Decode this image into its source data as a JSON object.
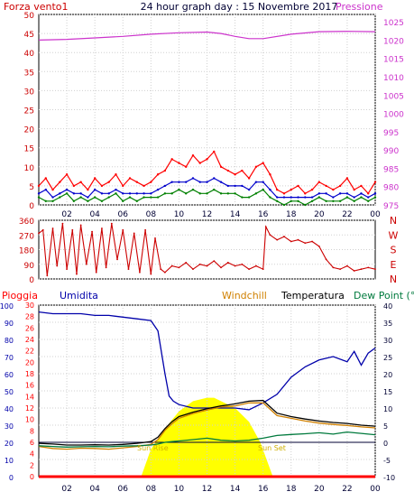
{
  "header": {
    "title": "24 hour graph day : 15 Novembre 2017",
    "wind_label": "Forza vento1",
    "pressure_label": "Pressione"
  },
  "bottom_legend": {
    "rain": "Pioggia",
    "humidity": "Umidita",
    "windchill": "Windchill",
    "temperature": "Temperatura",
    "dewpoint": "Dew Point (°C"
  },
  "annotations": {
    "sunrise": "Sun Rise",
    "sunset": "Sun Set"
  },
  "colors": {
    "wind_gust": "#ff0000",
    "wind_avg": "#0000cc",
    "wind_low": "#008000",
    "pressure": "#cc33cc",
    "direction": "#cc0000",
    "rain_axis": "#ff0000",
    "humidity": "#0000aa",
    "temperature": "#000000",
    "windchill": "#d08000",
    "dewpoint": "#007a3d",
    "sun": "#ffff00"
  },
  "chart_data": [
    {
      "type": "line",
      "name": "wind-pressure-panel",
      "x_ticks": [
        "02",
        "04",
        "06",
        "08",
        "10",
        "12",
        "14",
        "16",
        "18",
        "20",
        "22",
        "00"
      ],
      "y_left": {
        "label": "Forza vento1",
        "ticks": [
          0,
          5,
          10,
          15,
          20,
          25,
          30,
          35,
          40,
          45,
          50
        ],
        "ylim": [
          0,
          50
        ]
      },
      "y_right": {
        "label": "Pressione",
        "ticks": [
          975,
          980,
          985,
          990,
          995,
          1000,
          1005,
          1010,
          1015,
          1020,
          1025
        ],
        "ylim": [
          975,
          1027
        ]
      },
      "xlim": [
        0,
        24
      ],
      "series": [
        {
          "axis": "left",
          "color": "wind_gust",
          "x": [
            0,
            0.5,
            1,
            1.5,
            2,
            2.5,
            3,
            3.5,
            4,
            4.5,
            5,
            5.5,
            6,
            6.5,
            7,
            7.5,
            8,
            8.5,
            9,
            9.5,
            10,
            10.5,
            11,
            11.5,
            12,
            12.5,
            13,
            13.5,
            14,
            14.5,
            15,
            15.5,
            16,
            16.5,
            17,
            17.5,
            18,
            18.5,
            19,
            19.5,
            20,
            20.5,
            21,
            21.5,
            22,
            22.5,
            23,
            23.5,
            24
          ],
          "values": [
            5,
            7,
            4,
            6,
            8,
            5,
            6,
            4,
            7,
            5,
            6,
            8,
            5,
            7,
            6,
            5,
            6,
            8,
            9,
            12,
            11,
            10,
            13,
            11,
            12,
            14,
            10,
            9,
            8,
            9,
            7,
            10,
            11,
            8,
            4,
            3,
            4,
            5,
            3,
            4,
            6,
            5,
            4,
            5,
            7,
            4,
            5,
            3,
            6
          ]
        },
        {
          "axis": "left",
          "color": "wind_avg",
          "x": [
            0,
            0.5,
            1,
            1.5,
            2,
            2.5,
            3,
            3.5,
            4,
            4.5,
            5,
            5.5,
            6,
            6.5,
            7,
            7.5,
            8,
            8.5,
            9,
            9.5,
            10,
            10.5,
            11,
            11.5,
            12,
            12.5,
            13,
            13.5,
            14,
            14.5,
            15,
            15.5,
            16,
            16.5,
            17,
            17.5,
            18,
            18.5,
            19,
            19.5,
            20,
            20.5,
            21,
            21.5,
            22,
            22.5,
            23,
            23.5,
            24
          ],
          "values": [
            3,
            4,
            2,
            3,
            4,
            3,
            3,
            2,
            4,
            3,
            3,
            4,
            3,
            3,
            3,
            3,
            3,
            4,
            5,
            6,
            6,
            6,
            7,
            6,
            6,
            7,
            6,
            5,
            5,
            5,
            4,
            6,
            6,
            4,
            2,
            2,
            2,
            2,
            2,
            2,
            3,
            3,
            2,
            3,
            3,
            2,
            3,
            2,
            3
          ]
        },
        {
          "axis": "left",
          "color": "wind_low",
          "x": [
            0,
            0.5,
            1,
            1.5,
            2,
            2.5,
            3,
            3.5,
            4,
            4.5,
            5,
            5.5,
            6,
            6.5,
            7,
            7.5,
            8,
            8.5,
            9,
            9.5,
            10,
            10.5,
            11,
            11.5,
            12,
            12.5,
            13,
            13.5,
            14,
            14.5,
            15,
            15.5,
            16,
            16.5,
            17,
            17.5,
            18,
            18.5,
            19,
            19.5,
            20,
            20.5,
            21,
            21.5,
            22,
            22.5,
            23,
            23.5,
            24
          ],
          "values": [
            2,
            1,
            1,
            2,
            3,
            1,
            2,
            1,
            2,
            1,
            2,
            3,
            1,
            2,
            1,
            2,
            2,
            2,
            3,
            3,
            4,
            3,
            4,
            3,
            3,
            4,
            3,
            3,
            3,
            2,
            2,
            3,
            4,
            2,
            1,
            0,
            1,
            1,
            0,
            1,
            2,
            1,
            1,
            1,
            2,
            1,
            2,
            1,
            2
          ]
        },
        {
          "axis": "right",
          "color": "pressure",
          "x": [
            0,
            2,
            4,
            6,
            8,
            10,
            12,
            13,
            14,
            15,
            16,
            18,
            20,
            22,
            24
          ],
          "values": [
            1020.0,
            1020.2,
            1020.6,
            1021.0,
            1021.6,
            1022.0,
            1022.2,
            1021.8,
            1021.0,
            1020.4,
            1020.4,
            1021.6,
            1022.3,
            1022.4,
            1022.3
          ]
        }
      ]
    },
    {
      "type": "line",
      "name": "wind-direction-panel",
      "y_left": {
        "ticks": [
          0,
          90,
          180,
          270,
          360
        ],
        "ylim": [
          0,
          360
        ]
      },
      "y_right": {
        "labels": [
          "N",
          "W",
          "S",
          "E",
          "N"
        ]
      },
      "xlim": [
        0,
        24
      ],
      "series": [
        {
          "color": "direction",
          "x": [
            0,
            0.3,
            0.6,
            1.0,
            1.3,
            1.7,
            2.0,
            2.4,
            2.7,
            3.0,
            3.4,
            3.8,
            4.1,
            4.5,
            4.8,
            5.2,
            5.6,
            6.0,
            6.4,
            6.8,
            7.2,
            7.6,
            8.0,
            8.3,
            8.7,
            9.0,
            9.5,
            10,
            10.5,
            11,
            11.5,
            12,
            12.5,
            13,
            13.5,
            14,
            14.5,
            15,
            15.5,
            16,
            16.2,
            16.5,
            17,
            17.5,
            18,
            18.5,
            19,
            19.5,
            20,
            20.5,
            21,
            21.5,
            22,
            22.5,
            23,
            23.5,
            24
          ],
          "values": [
            280,
            300,
            20,
            310,
            80,
            340,
            60,
            300,
            30,
            330,
            90,
            290,
            40,
            310,
            70,
            340,
            120,
            300,
            60,
            280,
            40,
            300,
            30,
            250,
            60,
            40,
            80,
            70,
            100,
            60,
            90,
            80,
            110,
            70,
            100,
            80,
            90,
            60,
            80,
            60,
            320,
            270,
            240,
            260,
            230,
            240,
            220,
            230,
            200,
            120,
            70,
            60,
            80,
            50,
            60,
            70,
            60
          ]
        }
      ]
    },
    {
      "type": "line",
      "name": "temperature-humidity-panel",
      "x_ticks": [
        "02",
        "04",
        "06",
        "08",
        "10",
        "12",
        "14",
        "16",
        "18",
        "20",
        "22",
        "00"
      ],
      "y_left_humidity": {
        "label": "Umidita",
        "ticks": [
          0,
          10,
          20,
          30,
          40,
          50,
          60,
          70,
          80,
          90,
          100
        ],
        "ylim": [
          0,
          100
        ]
      },
      "y_left_rain": {
        "label": "Pioggia",
        "ticks": [
          0,
          2,
          4,
          6,
          8,
          10,
          12,
          14,
          16,
          18,
          20,
          22,
          24,
          26,
          28,
          30
        ],
        "ylim": [
          0,
          30
        ]
      },
      "y_right": {
        "ticks": [
          -10,
          -5,
          0,
          5,
          10,
          15,
          20,
          25,
          30,
          35,
          40
        ],
        "ylim": [
          -10,
          40
        ]
      },
      "xlim": [
        0,
        24
      ],
      "series": [
        {
          "axis": "humidity",
          "color": "humidity",
          "x": [
            0,
            1,
            2,
            3,
            4,
            5,
            6,
            7,
            8,
            8.5,
            9,
            9.3,
            9.6,
            10,
            11,
            12,
            13,
            14,
            15,
            16,
            17,
            18,
            19,
            20,
            21,
            22,
            22.5,
            23,
            23.5,
            24
          ],
          "values": [
            96,
            95,
            95,
            95,
            94,
            94,
            93,
            92,
            91,
            85,
            60,
            47,
            44,
            42,
            40,
            40,
            40,
            40,
            39,
            43,
            48,
            58,
            64,
            68,
            70,
            67,
            73,
            65,
            72,
            75
          ]
        },
        {
          "axis": "right",
          "color": "temperature",
          "x": [
            0,
            1,
            2,
            3,
            4,
            5,
            6,
            7,
            8,
            8.5,
            9,
            9.5,
            10,
            11,
            12,
            13,
            14,
            15,
            16,
            17,
            18,
            19,
            20,
            21,
            22,
            23,
            24
          ],
          "values": [
            -0.3,
            -0.5,
            -0.8,
            -0.8,
            -0.7,
            -0.8,
            -0.6,
            -0.3,
            0.2,
            1.5,
            4,
            6,
            7.5,
            8.8,
            9.8,
            10.6,
            11.2,
            12,
            12.2,
            8.5,
            7.5,
            6.8,
            6.2,
            5.8,
            5.5,
            5.0,
            4.7
          ]
        },
        {
          "axis": "right",
          "color": "windchill",
          "x": [
            0,
            1,
            2,
            3,
            4,
            5,
            6,
            7,
            8,
            8.5,
            9,
            9.5,
            10,
            11,
            12,
            13,
            14,
            15,
            16,
            17,
            18,
            19,
            20,
            21,
            22,
            23,
            24
          ],
          "values": [
            -1.2,
            -1.8,
            -2,
            -1.7,
            -1.8,
            -2,
            -1.6,
            -1.2,
            -0.6,
            0.8,
            3.5,
            5.4,
            7,
            8.4,
            9.4,
            10.3,
            10.6,
            11.5,
            11.5,
            7.8,
            7,
            6.2,
            5.6,
            5.2,
            4.9,
            4.5,
            4.2
          ]
        },
        {
          "axis": "right",
          "color": "dewpoint",
          "x": [
            0,
            1,
            2,
            3,
            4,
            5,
            6,
            7,
            8,
            8.5,
            9,
            9.5,
            10,
            11,
            12,
            13,
            14,
            15,
            16,
            17,
            18,
            19,
            20,
            21,
            22,
            23,
            24
          ],
          "values": [
            -1,
            -1.2,
            -1.4,
            -1.3,
            -1.2,
            -1.3,
            -1.1,
            -1.0,
            -0.8,
            -0.5,
            0,
            0.2,
            0.4,
            0.8,
            1.2,
            0.6,
            0.4,
            0.6,
            1.2,
            2.0,
            2.3,
            2.5,
            2.8,
            2.4,
            3.0,
            2.6,
            2.2
          ]
        },
        {
          "axis": "rain",
          "color": "rain_axis",
          "x": [
            0,
            24
          ],
          "values": [
            0,
            0
          ]
        }
      ],
      "sun_curve": {
        "x": [
          7.3,
          8,
          9,
          10,
          11,
          12,
          12.5,
          13,
          14,
          15,
          15.8,
          16.7
        ],
        "values": [
          0,
          8,
          14,
          19,
          22,
          23,
          23,
          22,
          20,
          16,
          10,
          0
        ]
      }
    }
  ]
}
